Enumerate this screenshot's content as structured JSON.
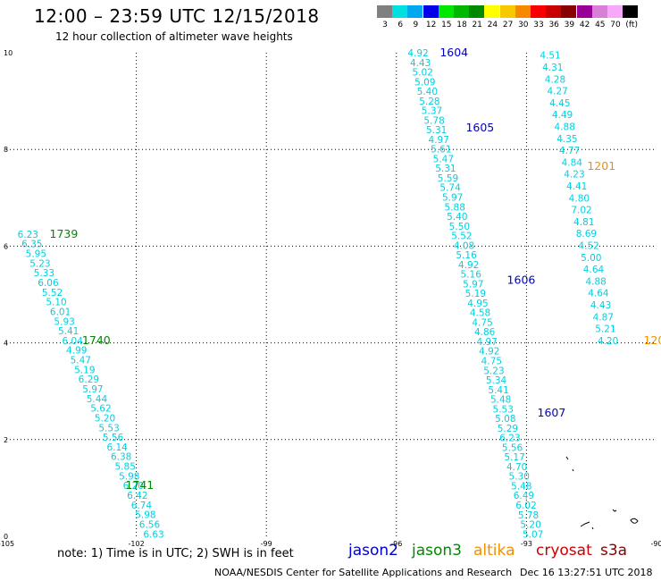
{
  "header": {
    "title": "12:00 – 23:59 UTC 12/15/2018",
    "subtitle": "12 hour collection of altimeter wave heights"
  },
  "legend": {
    "unit": "(ft)",
    "items": [
      {
        "label": "3",
        "color": "#808080"
      },
      {
        "label": "6",
        "color": "#00e0e0"
      },
      {
        "label": "9",
        "color": "#00a8f0"
      },
      {
        "label": "12",
        "color": "#0000e8"
      },
      {
        "label": "15",
        "color": "#00e800"
      },
      {
        "label": "18",
        "color": "#00b800"
      },
      {
        "label": "21",
        "color": "#008800"
      },
      {
        "label": "24",
        "color": "#ffff00"
      },
      {
        "label": "27",
        "color": "#f8c800"
      },
      {
        "label": "30",
        "color": "#f88800"
      },
      {
        "label": "33",
        "color": "#f80000"
      },
      {
        "label": "36",
        "color": "#c80000"
      },
      {
        "label": "39",
        "color": "#880000"
      },
      {
        "label": "42",
        "color": "#980098"
      },
      {
        "label": "45",
        "color": "#d880d8"
      },
      {
        "label": "70",
        "color": "#f8a8f8"
      },
      {
        "label": "",
        "color": "#000000"
      }
    ]
  },
  "axes": {
    "x_ticks": [
      "-105",
      "-102",
      "-99",
      "-96",
      "-93",
      "-90"
    ],
    "y_ticks": [
      "0",
      "2",
      "4",
      "6",
      "8",
      "10"
    ]
  },
  "colors": {
    "wave": "#00d0e0",
    "jason2": "#0000cc",
    "jason3": "#008800",
    "altika": "#f09000",
    "cryosat": "#cc0000",
    "s3a": "#880000"
  },
  "passes": [
    {
      "id": "jason3-west",
      "lon0": -104.5,
      "lat0": 6.25,
      "lon1": -101.6,
      "lat1": 0.05,
      "values": [
        "6.23",
        "6.35",
        "5.95",
        "5.23",
        "5.33",
        "6.06",
        "5.52",
        "5.10",
        "6.01",
        "5.93",
        "5.41",
        "6.04",
        "4.99",
        "5.47",
        "5.19",
        "6.29",
        "5.97",
        "5.44",
        "5.62",
        "5.20",
        "5.53",
        "5.56",
        "6.14",
        "6.38",
        "5.85",
        "5.98",
        "6.20",
        "6.42",
        "6.74",
        "5.98",
        "6.56",
        "6.63"
      ],
      "time_labels": [
        {
          "text": "1739",
          "sat": "jason3",
          "lon": -104.0,
          "lat": 6.25
        },
        {
          "text": "1740",
          "sat": "jason3",
          "lon": -103.25,
          "lat": 4.05
        },
        {
          "text": "1741",
          "sat": "jason3",
          "lon": -102.25,
          "lat": 1.05
        }
      ]
    },
    {
      "id": "jason2-east",
      "lon0": -95.5,
      "lat0": 10.0,
      "lon1": -92.85,
      "lat1": 0.05,
      "values": [
        "4.92",
        "4.43",
        "5.02",
        "5.09",
        "5.40",
        "5.28",
        "5.37",
        "5.78",
        "5.31",
        "4.97",
        "5.61",
        "5.47",
        "5.31",
        "5.59",
        "5.74",
        "5.97",
        "5.88",
        "5.40",
        "5.50",
        "5.52",
        "4.08",
        "5.16",
        "4.92",
        "5.16",
        "5.97",
        "5.19",
        "4.95",
        "4.58",
        "4.75",
        "4.86",
        "4.97",
        "4.92",
        "4.75",
        "5.23",
        "5.34",
        "5.41",
        "5.48",
        "5.53",
        "5.08",
        "5.29",
        "6.23",
        "5.56",
        "5.17",
        "4.70",
        "5.30",
        "5.48",
        "6.49",
        "6.02",
        "5.78",
        "5.20",
        "5.07"
      ],
      "time_labels": [
        {
          "text": "1604",
          "sat": "jason2",
          "lon": -95.0,
          "lat": 10.0
        },
        {
          "text": "1605",
          "sat": "jason2",
          "lon": -94.4,
          "lat": 8.45
        },
        {
          "text": "1606",
          "sat": "jason2",
          "lon": -93.45,
          "lat": 5.3
        },
        {
          "text": "1607",
          "sat": "jason2",
          "lon": -92.75,
          "lat": 2.55
        }
      ]
    },
    {
      "id": "altika-east",
      "lon0": -92.45,
      "lat0": 9.95,
      "lon1": -91.12,
      "lat1": 4.05,
      "values": [
        "4.51",
        "4.31",
        "4.28",
        "4.27",
        "4.45",
        "4.49",
        "4.88",
        "4.35",
        "4.77",
        "4.84",
        "4.23",
        "4.41",
        "4.80",
        "7.02",
        "4.81",
        "8.69",
        "4.52",
        "5.00",
        "4.64",
        "4.88",
        "4.64",
        "4.43",
        "4.87",
        "5.21",
        "4.20"
      ],
      "time_labels": [
        {
          "text": "1201",
          "sat": "altika",
          "lon": -91.6,
          "lat": 7.65
        },
        {
          "text": "120",
          "sat": "altika",
          "lon": -90.3,
          "lat": 4.05
        }
      ]
    }
  ],
  "footer": {
    "note": "note:  1) Time is in UTC;  2) SWH is in feet",
    "satellites": [
      {
        "name": "jason2",
        "key": "jason2"
      },
      {
        "name": "jason3",
        "key": "jason3"
      },
      {
        "name": "altika",
        "key": "altika"
      },
      {
        "name": "cryosat",
        "key": "cryosat"
      },
      {
        "name": "s3a",
        "key": "s3a"
      }
    ],
    "credit": "NOAA/NESDIS Center for Satellite Applications and Research",
    "timestamp": "Dec 16 13:27:51 UTC 2018"
  }
}
